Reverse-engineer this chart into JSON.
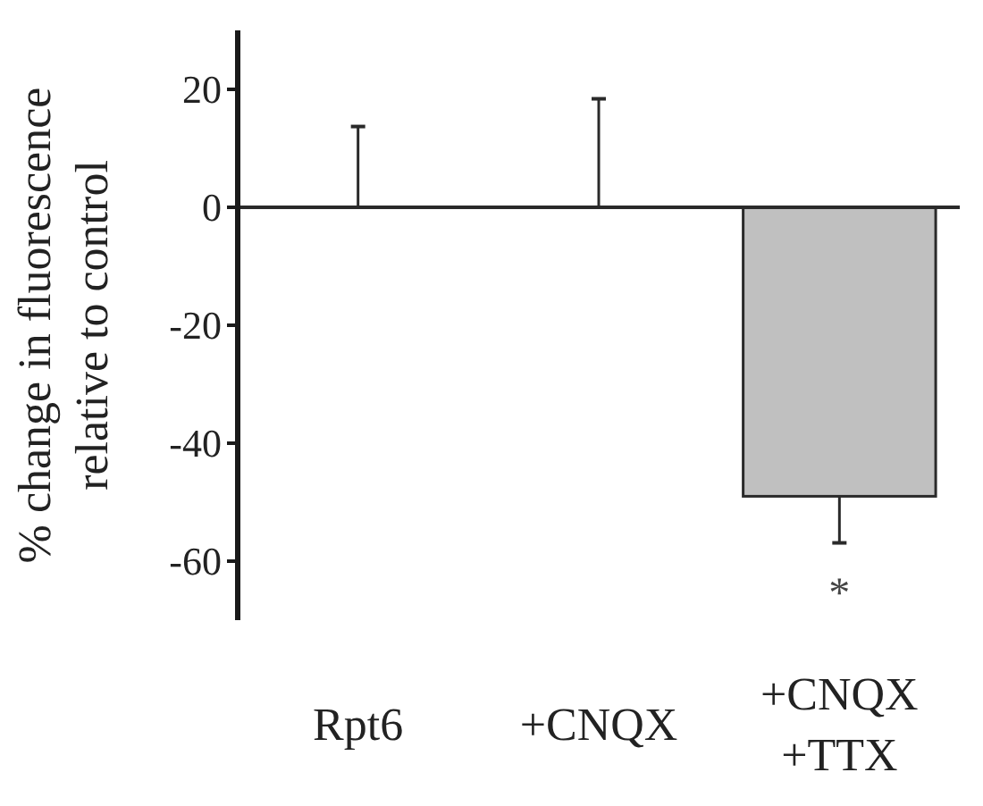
{
  "chart_data": {
    "type": "bar",
    "ylabel": "% change in fluorescence\nrelative to control",
    "categories": [
      "Rpt6",
      "+CNQX",
      "+CNQX\n+TTX"
    ],
    "values": [
      0,
      0,
      -49
    ],
    "errors": [
      [
        0,
        13.7
      ],
      [
        0,
        18.4
      ],
      [
        -56.9,
        -49
      ]
    ],
    "color": "#c0c0c0",
    "ylim": [
      -70,
      30
    ],
    "yticks": [
      -60,
      -40,
      -20,
      0,
      20
    ],
    "annotations": [
      "*"
    ]
  }
}
